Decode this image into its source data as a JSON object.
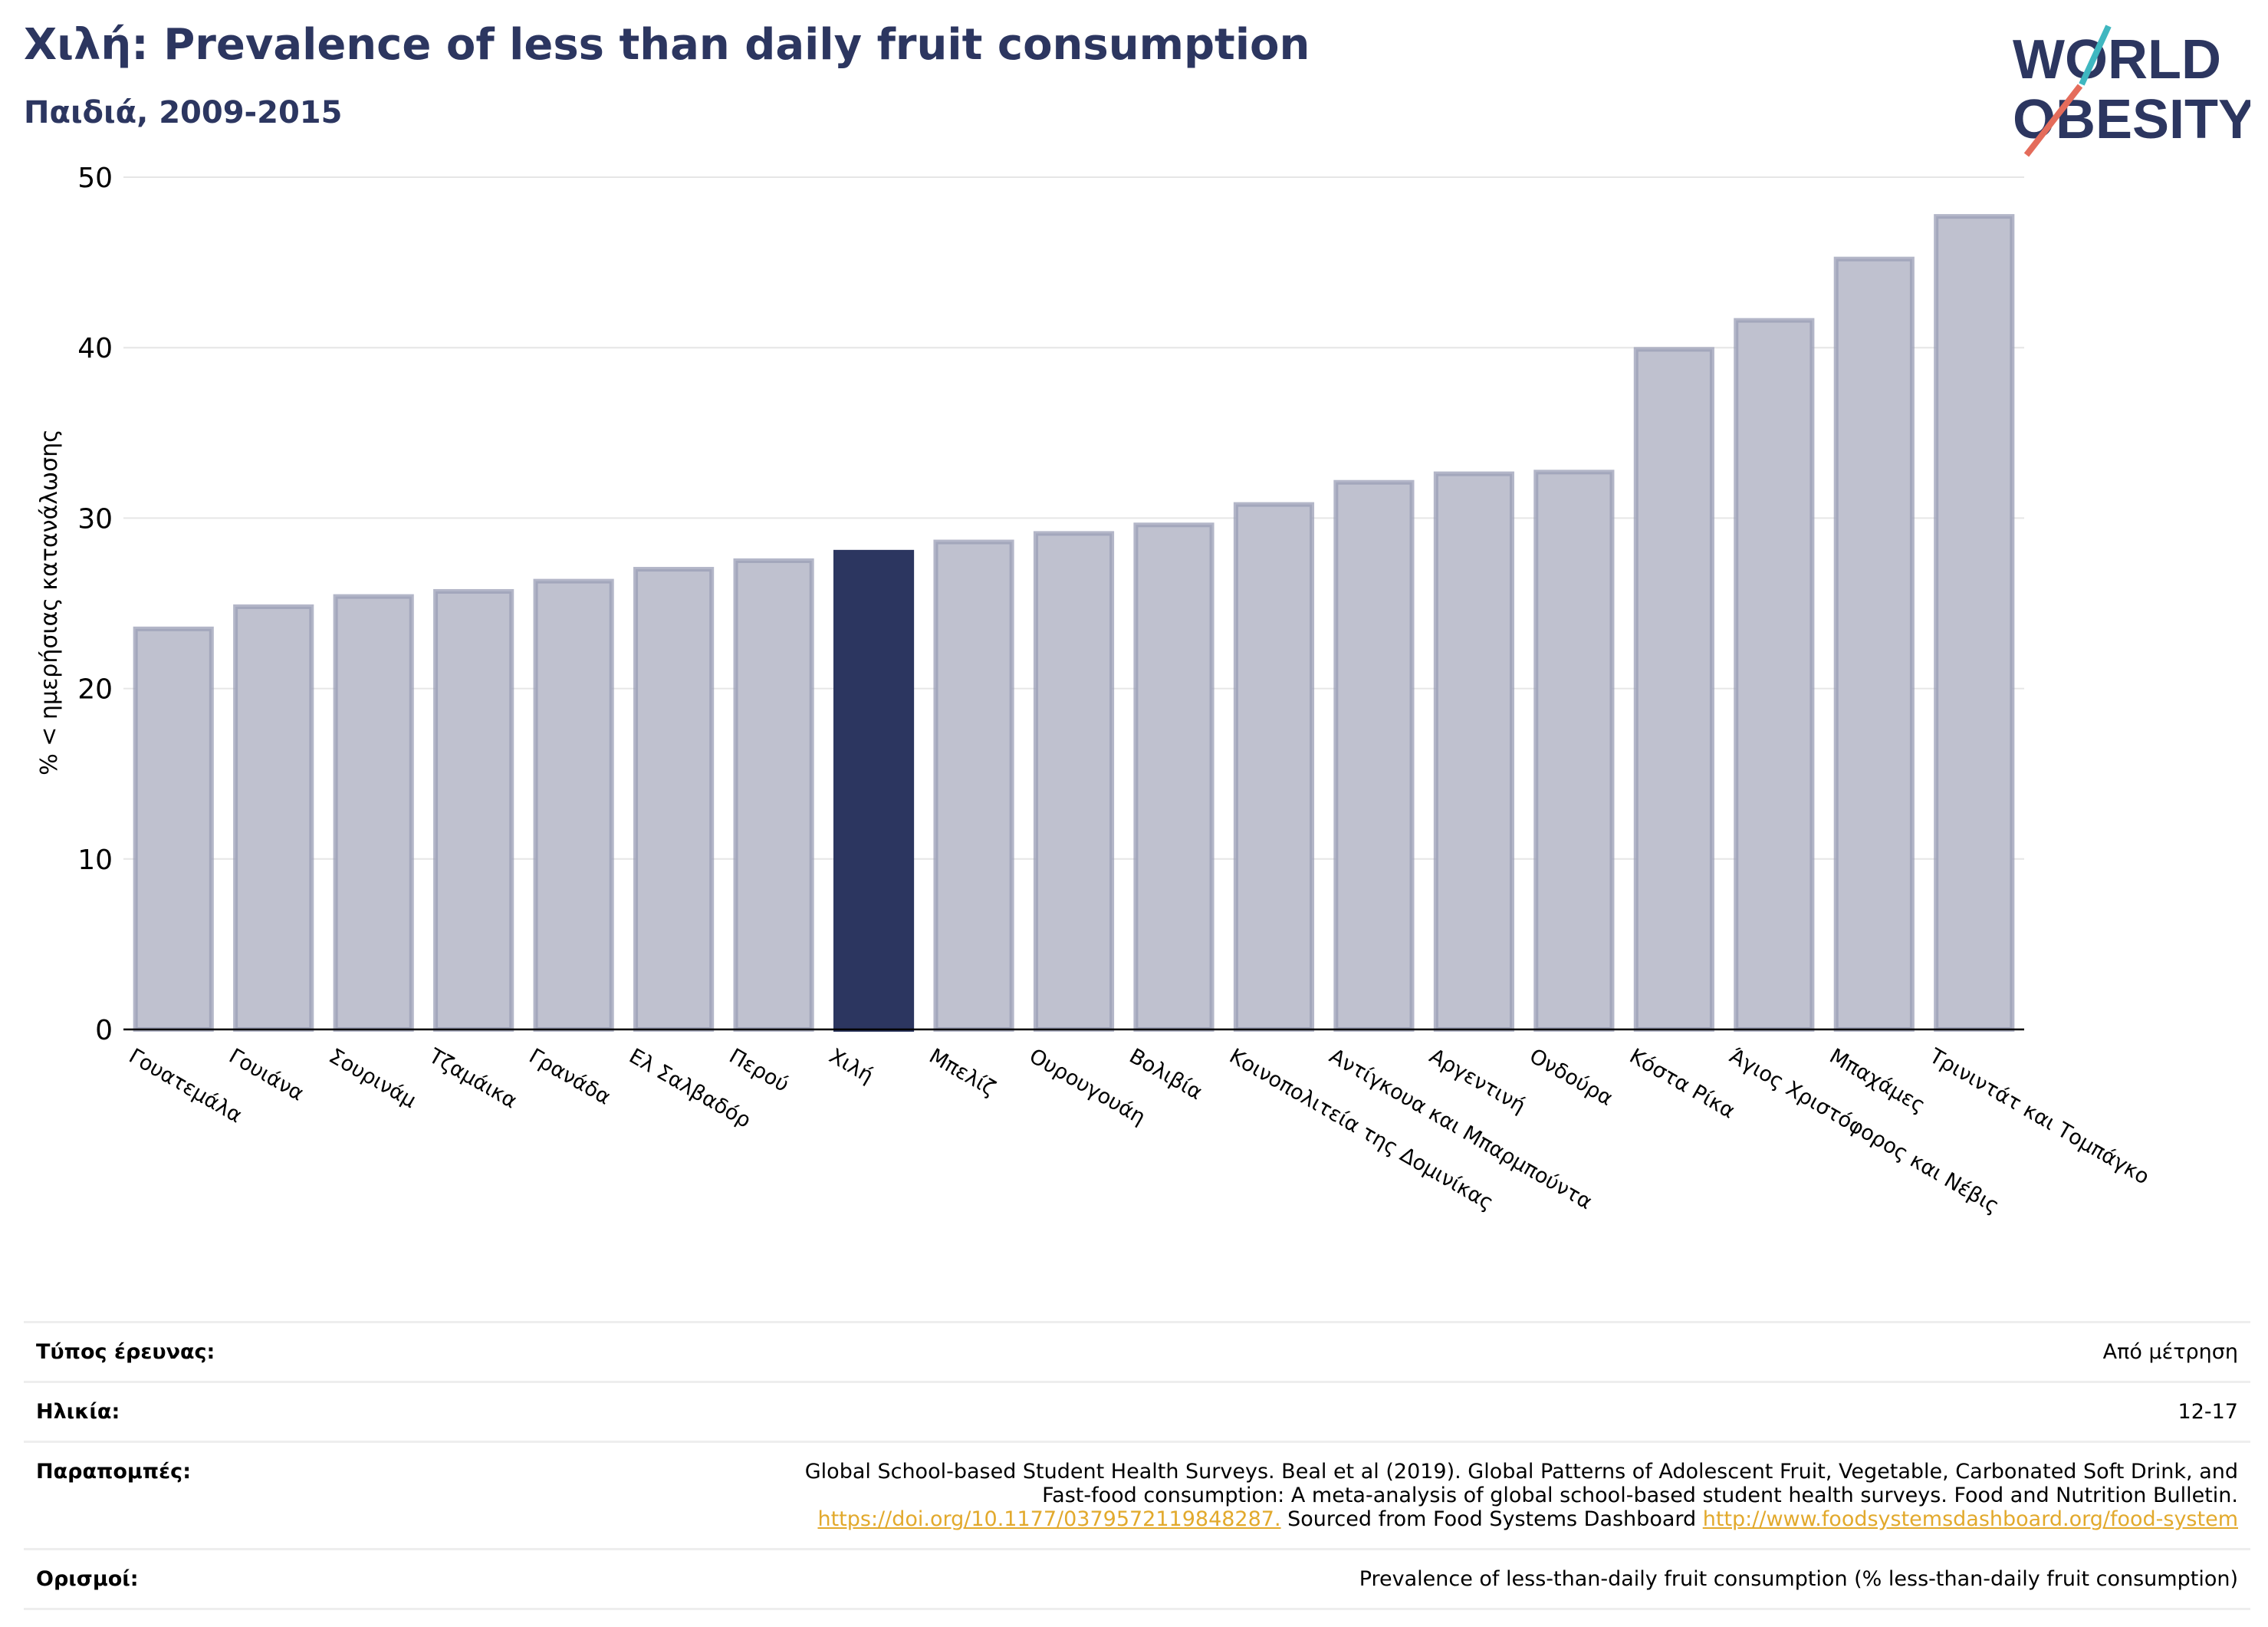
{
  "chart_data": {
    "type": "bar",
    "title": "Χιλή: Prevalence of less than daily fruit consumption",
    "subtitle": "Παιδιά, 2009-2015",
    "ylabel": "% < ημερήσιας κατανάλωσης",
    "ylim": [
      0,
      50
    ],
    "yticks": [
      0,
      10,
      20,
      30,
      40,
      50
    ],
    "grid": true,
    "highlight": "Χιλή",
    "categories": [
      "Γουατεμάλα",
      "Γουιάνα",
      "Σουρινάμ",
      "Τζαμάικα",
      "Γρανάδα",
      "Ελ Σαλβαδόρ",
      "Περού",
      "Χιλή",
      "Μπελίζ",
      "Ουρουγουάη",
      "Βολιβία",
      "Κοινοπολιτεία της Δομινίκας",
      "Αντίγκουα και Μπαρμπούντα",
      "Αργεντινή",
      "Ονδούρα",
      "Κόστα Ρίκα",
      "Άγιος Χριστόφορος και Νέβις",
      "Μπαχάμες",
      "Τρινιντάτ και Τομπάγκο"
    ],
    "values": [
      23.5,
      24.8,
      25.4,
      25.7,
      26.3,
      27.0,
      27.5,
      28.0,
      28.6,
      29.1,
      29.6,
      30.8,
      32.1,
      32.6,
      32.7,
      39.9,
      41.6,
      45.2,
      47.7
    ]
  },
  "colors": {
    "highlight": "#2c3660",
    "bar": "#bfc1cf",
    "bar_edge": "#9a9db5",
    "title": "#2c3660",
    "link": "#e2a92c"
  },
  "logo": {
    "line1": "WORLD",
    "line2": "OBESITY"
  },
  "meta": [
    {
      "key": "Τύπος έρευνας:",
      "value": "Από μέτρηση"
    },
    {
      "key": "Ηλικία:",
      "value": "12-17"
    },
    {
      "key": "Παραπομπές:",
      "value_line1": "Global School-based Student Health Surveys. Beal et al (2019). Global Patterns of Adolescent Fruit, Vegetable, Carbonated Soft Drink, and",
      "value_line2": "Fast-food consumption: A meta-analysis of global school-based student health surveys. Food and Nutrition Bulletin.",
      "link1": "https://doi.org/10.1177/0379572119848287.",
      "value_mid": " Sourced from Food Systems Dashboard ",
      "link2": "http://www.foodsystemsdashboard.org/food-system"
    },
    {
      "key": "Ορισμοί:",
      "value": "Prevalence of less-than-daily fruit consumption (% less-than-daily fruit consumption)"
    }
  ]
}
